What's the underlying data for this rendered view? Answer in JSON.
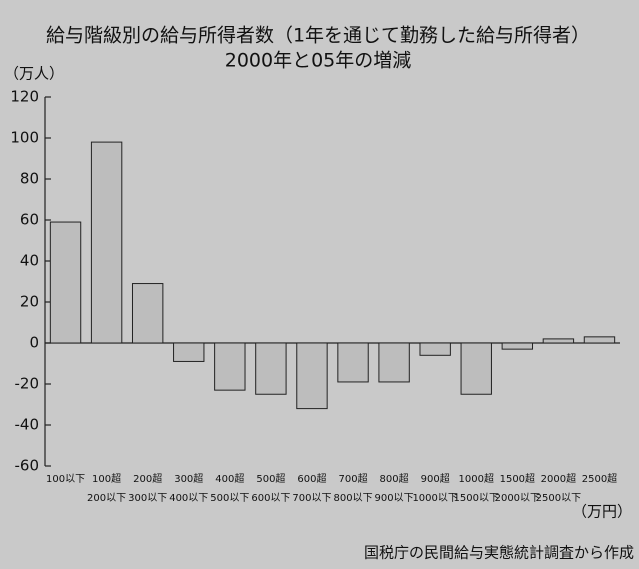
{
  "chart_data": {
    "type": "bar",
    "title": "給与階級別の給与所得者数（1年を通じて勤務した給与所得者）",
    "subtitle": "2000年と05年の増減",
    "y_axis_label": "（万人）",
    "x_axis_label": "（万円）",
    "source": "国税庁の民間給与実態統計調査から作成",
    "categories": [
      [
        "100以下"
      ],
      [
        "100超",
        "200以下"
      ],
      [
        "200超",
        "300以下"
      ],
      [
        "300超",
        "400以下"
      ],
      [
        "400超",
        "500以下"
      ],
      [
        "500超",
        "600以下"
      ],
      [
        "600超",
        "700以下"
      ],
      [
        "700超",
        "800以下"
      ],
      [
        "800超",
        "900以下"
      ],
      [
        "900超",
        "1000以下"
      ],
      [
        "1000超",
        "1500以下"
      ],
      [
        "1500超",
        "2000以下"
      ],
      [
        "2000超",
        "2500以下"
      ],
      [
        "2500超"
      ]
    ],
    "values": [
      59,
      98,
      29,
      -9,
      -23,
      -25,
      -32,
      -19,
      -19,
      -6,
      -25,
      -3,
      2,
      3
    ],
    "color": "#bdbdbd",
    "ylim": [
      -60,
      120
    ],
    "yticks": [
      -60,
      -40,
      -20,
      0,
      20,
      40,
      60,
      80,
      100,
      120
    ],
    "grid": false
  }
}
